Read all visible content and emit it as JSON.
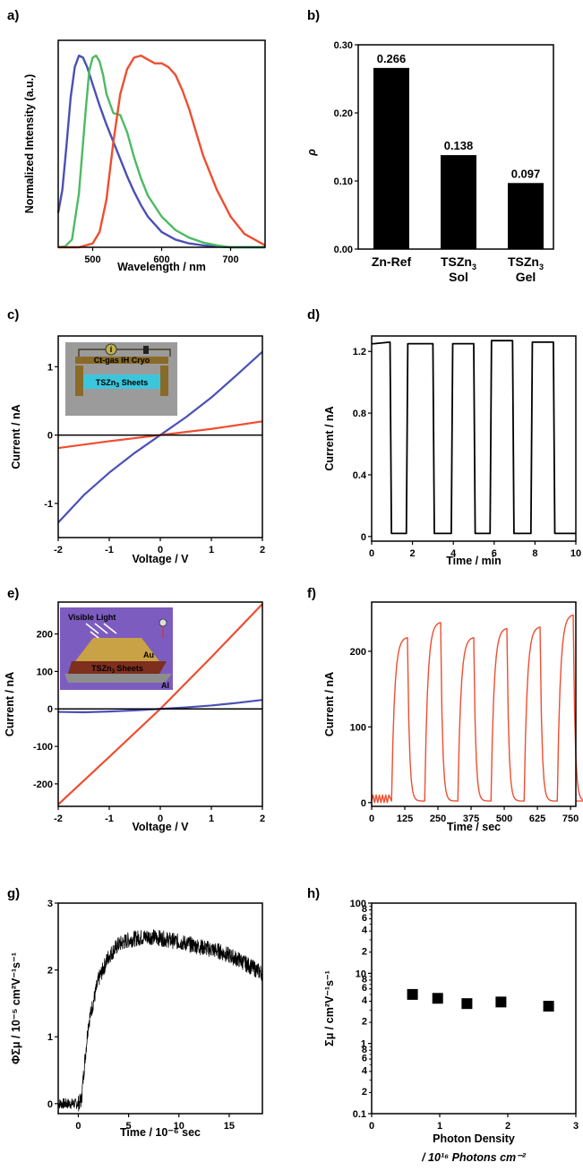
{
  "colors": {
    "blue": "#4b50b5",
    "red": "#ee4e31",
    "green": "#4dba63",
    "black": "#000000",
    "inset_c_bg": "#9b9b9b",
    "inset_c_sheet": "#3cc6dc",
    "inset_c_metal": "#8a6a28",
    "inset_e_bg": "#7d5cbf",
    "inset_e_au": "#c9a246",
    "inset_e_sheet": "#7e2f1d",
    "inset_e_al": "#8d8d8d"
  },
  "panels": {
    "a": {
      "label": "a)",
      "xlabel": "Wavelength / nm",
      "ylabel": "Normalized Intensity (a.u.)",
      "xticks": [
        "500",
        "600",
        "700"
      ],
      "chart_data": {
        "type": "line",
        "xlim": [
          450,
          750
        ],
        "ylim": [
          0,
          1.08
        ],
        "series": [
          {
            "color": "blue",
            "x": [
              450,
              456,
              462,
              468,
              474,
              480,
              486,
              492,
              500,
              510,
              520,
              530,
              540,
              550,
              560,
              570,
              580,
              600,
              620,
              640,
              660,
              680,
              700,
              750
            ],
            "y": [
              0.18,
              0.3,
              0.53,
              0.78,
              0.94,
              1.0,
              0.99,
              0.94,
              0.85,
              0.74,
              0.64,
              0.55,
              0.46,
              0.37,
              0.29,
              0.22,
              0.16,
              0.08,
              0.04,
              0.02,
              0.01,
              0.004,
              0.0,
              0.0
            ]
          },
          {
            "color": "green",
            "x": [
              450,
              460,
              470,
              480,
              490,
              495,
              500,
              505,
              510,
              515,
              520,
              530,
              540,
              550,
              560,
              570,
              580,
              600,
              620,
              640,
              660,
              680,
              700,
              750
            ],
            "y": [
              0.0,
              0.005,
              0.04,
              0.28,
              0.72,
              0.92,
              0.99,
              1.0,
              0.97,
              0.9,
              0.8,
              0.7,
              0.69,
              0.6,
              0.47,
              0.36,
              0.27,
              0.16,
              0.09,
              0.05,
              0.025,
              0.01,
              0.0,
              0.0
            ]
          },
          {
            "color": "red",
            "x": [
              450,
              480,
              500,
              510,
              520,
              530,
              540,
              550,
              560,
              570,
              580,
              590,
              600,
              610,
              620,
              630,
              640,
              650,
              660,
              680,
              700,
              720,
              750
            ],
            "y": [
              0.0,
              0.0,
              0.02,
              0.08,
              0.25,
              0.55,
              0.8,
              0.93,
              0.99,
              1.0,
              0.98,
              0.96,
              0.96,
              0.94,
              0.9,
              0.82,
              0.72,
              0.6,
              0.48,
              0.3,
              0.16,
              0.07,
              0.01
            ]
          }
        ]
      }
    },
    "b": {
      "label": "b)",
      "ylabel": "ρ",
      "yticks": [
        "0.00",
        "0.10",
        "0.20",
        "0.30"
      ],
      "cat_line1": [
        "Zn-Ref",
        "TSZn",
        "TSZn"
      ],
      "cat_sub": [
        "",
        "3",
        "3"
      ],
      "cat_line2": [
        "",
        "Sol",
        "Gel"
      ],
      "chart_data": {
        "type": "bar",
        "categories": [
          "Zn-Ref",
          "TSZn3 Sol",
          "TSZn3 Gel"
        ],
        "values": [
          0.266,
          0.138,
          0.097
        ],
        "value_labels": [
          "0.266",
          "0.138",
          "0.097"
        ],
        "ylim": [
          0,
          0.3
        ]
      }
    },
    "c": {
      "label": "c)",
      "xlabel": "Voltage / V",
      "ylabel": "Current / nA",
      "xticks": [
        "-2",
        "-1",
        "0",
        "1",
        "2"
      ],
      "yticks": [
        "-1",
        "0",
        "1"
      ],
      "inset_top": "Ct-gas IH Cryo",
      "inset_sheet": "TSZn",
      "inset_sub": "3",
      "inset_tail": " Sheets",
      "inset_meter": "i",
      "chart_data": {
        "type": "line",
        "xlim": [
          -2,
          2
        ],
        "ylim": [
          -1.5,
          1.45
        ],
        "series": [
          {
            "color": "blue",
            "x": [
              -2,
              -1.5,
              -1,
              -0.5,
              0,
              0.5,
              1,
              1.5,
              2
            ],
            "y": [
              -1.28,
              -0.88,
              -0.55,
              -0.26,
              0.0,
              0.26,
              0.55,
              0.88,
              1.22
            ]
          },
          {
            "color": "red",
            "x": [
              -2,
              -1,
              0,
              1,
              2
            ],
            "y": [
              -0.19,
              -0.09,
              0.0,
              0.09,
              0.2
            ]
          },
          {
            "color": "black",
            "x": [
              -2,
              2
            ],
            "y": [
              0,
              0
            ]
          }
        ]
      }
    },
    "d": {
      "label": "d)",
      "xlabel": "Time / min",
      "ylabel": "Current / nA",
      "xticks": [
        "0",
        "2",
        "4",
        "6",
        "8",
        "10"
      ],
      "yticks": [
        "0",
        "0.4",
        "0.8",
        "1.2"
      ],
      "chart_data": {
        "type": "line",
        "xlim": [
          0,
          10
        ],
        "ylim": [
          -0.03,
          1.3
        ],
        "series": [
          {
            "color": "black",
            "x": [
              0,
              0.1,
              0.9,
              0.97,
              1.7,
              1.77,
              3.0,
              3.07,
              3.9,
              3.97,
              5.0,
              5.07,
              5.8,
              5.87,
              6.9,
              6.97,
              7.8,
              7.87,
              8.9,
              8.97,
              9.9,
              10
            ],
            "y": [
              1.25,
              1.25,
              1.26,
              0.02,
              0.02,
              1.25,
              1.25,
              0.02,
              0.02,
              1.25,
              1.25,
              0.02,
              0.02,
              1.27,
              1.27,
              0.02,
              0.02,
              1.26,
              1.26,
              0.02,
              0.02,
              0.02
            ]
          }
        ]
      }
    },
    "e": {
      "label": "e)",
      "xlabel": "Voltage / V",
      "ylabel": "Current / nA",
      "xticks": [
        "-2",
        "-1",
        "0",
        "1",
        "2"
      ],
      "yticks": [
        "-200",
        "-100",
        "0",
        "100",
        "200"
      ],
      "inset_title": "Visible Light",
      "inset_au": "Au",
      "inset_sheet": "TSZn",
      "inset_sub": "3",
      "inset_tail": " Sheets",
      "inset_al": "Al",
      "chart_data": {
        "type": "line",
        "xlim": [
          -2,
          2
        ],
        "ylim": [
          -260,
          285
        ],
        "series": [
          {
            "color": "red",
            "x": [
              -2,
              -1,
              0,
              1,
              2
            ],
            "y": [
              -255,
              -128,
              0,
              138,
              280
            ]
          },
          {
            "color": "blue",
            "x": [
              -2,
              -1.5,
              -1,
              -0.5,
              0,
              0.5,
              1,
              1.5,
              2
            ],
            "y": [
              -8,
              -9,
              -7,
              -4,
              0,
              4,
              9,
              16,
              24
            ]
          },
          {
            "color": "black",
            "x": [
              -2,
              2
            ],
            "y": [
              0,
              0
            ]
          }
        ]
      }
    },
    "f": {
      "label": "f)",
      "xlabel": "Time / sec",
      "ylabel": "Current / nA",
      "xticks": [
        "0",
        "125",
        "250",
        "375",
        "500",
        "625",
        "750"
      ],
      "yticks": [
        "0",
        "100",
        "200"
      ],
      "chart_data": {
        "type": "line",
        "xlim": [
          0,
          770
        ],
        "ylim": [
          -5,
          265
        ],
        "series": [
          {
            "color": "red",
            "on_times": [
              75,
              200,
              325,
              450,
              575,
              700
            ],
            "peaks": [
              218,
              238,
              218,
              230,
              232,
              248
            ],
            "on_duration": 60
          }
        ]
      }
    },
    "g": {
      "label": "g)",
      "xlabel": "Time / 10⁻⁶ sec",
      "ylabel": "ΦΣμ / 10⁻⁵ cm²V⁻¹s⁻¹",
      "xticks": [
        "0",
        "5",
        "10",
        "15"
      ],
      "yticks": [
        "0",
        "1",
        "2",
        "3"
      ],
      "chart_data": {
        "type": "line",
        "xlim": [
          -2,
          18.3
        ],
        "ylim": [
          -0.15,
          3.0
        ],
        "series": [
          {
            "color": "black",
            "x": [
              -2,
              0,
              0.3,
              0.5,
              1,
              2,
              3,
              4,
              5,
              6,
              7,
              8,
              10,
              12,
              14,
              16,
              18.3
            ],
            "y": [
              0,
              0,
              0.05,
              0.4,
              1.2,
              1.85,
              2.2,
              2.38,
              2.45,
              2.48,
              2.5,
              2.48,
              2.42,
              2.35,
              2.28,
              2.15,
              1.95
            ],
            "noise": 0.12
          }
        ]
      }
    },
    "h": {
      "label": "h)",
      "xlabel_line1": "Photon Density",
      "xlabel_line2": "/ 10¹⁶ Photons cm⁻²",
      "ylabel": "Σμ / cm²V⁻¹s⁻¹",
      "xticks": [
        "0",
        "1",
        "2",
        "3"
      ],
      "yticks": [
        "0.1",
        "1",
        "10",
        "100"
      ],
      "minor_ticks": [
        "2",
        "4",
        "6",
        "8"
      ],
      "chart_data": {
        "type": "scatter",
        "yscale": "log",
        "xlim": [
          0,
          3
        ],
        "ylim": [
          0.1,
          100
        ],
        "x": [
          0.6,
          0.97,
          1.4,
          1.9,
          2.6
        ],
        "y": [
          5.0,
          4.4,
          3.7,
          3.9,
          3.4
        ]
      }
    }
  }
}
